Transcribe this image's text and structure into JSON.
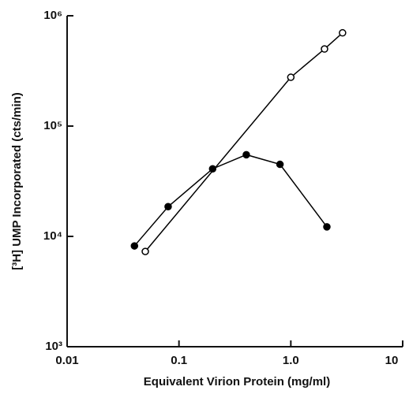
{
  "chart_data": {
    "type": "line",
    "xlabel": "Equivalent Virion Protein (mg/ml)",
    "ylabel": "[³H] UMP Incorporated (cts/min)",
    "xscale": "log",
    "yscale": "log",
    "xlim": [
      0.01,
      10
    ],
    "ylim": [
      1000,
      1000000
    ],
    "xticks": [
      0.01,
      0.1,
      {
        "value": 1,
        "label": "1.0"
      },
      10
    ],
    "yticks": [
      {
        "value": 1000,
        "label": "10³"
      },
      {
        "value": 10000,
        "label": "10⁴"
      },
      {
        "value": 100000,
        "label": "10⁵"
      },
      {
        "value": 1000000,
        "label": "10⁶"
      }
    ],
    "series": [
      {
        "color": "#000000",
        "marker_fill": "#000000",
        "x": [
          0.04,
          0.08,
          0.2,
          0.4,
          0.8,
          2.1
        ],
        "values": [
          8200,
          18600,
          41000,
          55000,
          45000,
          12200
        ]
      },
      {
        "color": "#000000",
        "marker_fill": "#ffffff",
        "x": [
          0.05,
          1.0,
          2.0,
          2.9
        ],
        "values": [
          7300,
          277000,
          500000,
          700000
        ]
      }
    ]
  }
}
